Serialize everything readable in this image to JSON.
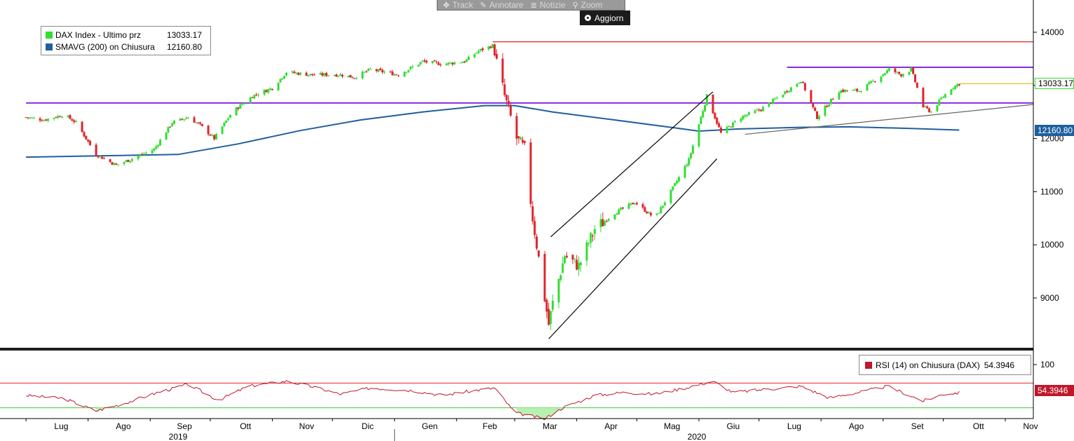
{
  "toolbar": {
    "items": [
      {
        "icon": "crosshair-icon",
        "glyph": "✥",
        "label": "Track"
      },
      {
        "icon": "pencil-icon",
        "glyph": "✎",
        "label": "Annotare"
      },
      {
        "icon": "news-icon",
        "glyph": "≣",
        "label": "Notizie"
      },
      {
        "icon": "zoom-icon",
        "glyph": "⚲",
        "label": "Zoom"
      }
    ],
    "refresh_label": "Aggiorn"
  },
  "legend": {
    "series": [
      {
        "label": "DAX Index - Ultimo prz",
        "value": "13033.17",
        "color": "#33dd33"
      },
      {
        "label": "SMAVG (200)  on Chiusura",
        "value": "12160.80",
        "color": "#1f5f9e"
      }
    ]
  },
  "rsi_legend": {
    "label": "RSI (14)  on Chiusura (DAX)",
    "value": "54.3946",
    "color": "#c0172a"
  },
  "tags": {
    "price": "13033.17",
    "sma": "12160.80",
    "rsi": "54.3946"
  },
  "colors": {
    "up": "#33dd33",
    "down": "#e0242b",
    "sma": "#1f5f9e",
    "purple": "#8a2be2",
    "red_line": "#e0242b",
    "yellow": "#e8b400",
    "rsi": "#c0172a",
    "rsi_green": "#33cc33"
  },
  "chart_data": [
    {
      "type": "candlestick",
      "title": "",
      "y_axis_ticks": [
        "9000",
        "10000",
        "11000",
        "12000",
        "13000",
        "14000"
      ],
      "ylim": [
        8200,
        14600
      ],
      "x_axis_months": [
        "Lug",
        "Ago",
        "Sep",
        "Ott",
        "Nov",
        "Dic",
        "Gen",
        "Feb",
        "Mar",
        "Apr",
        "Mag",
        "Giu",
        "Lug",
        "Ago",
        "Set",
        "Ott",
        "Nov"
      ],
      "x_axis_years": [
        "2019",
        "2020"
      ],
      "price_series_name": "DAX Index - Ultimo prz",
      "price_path": [
        [
          "2019-07-01",
          12400
        ],
        [
          "2019-07-10",
          12350
        ],
        [
          "2019-07-20",
          12450
        ],
        [
          "2019-07-26",
          12300
        ],
        [
          "2019-08-05",
          11700
        ],
        [
          "2019-08-15",
          11500
        ],
        [
          "2019-08-25",
          11650
        ],
        [
          "2019-09-03",
          11800
        ],
        [
          "2019-09-12",
          12300
        ],
        [
          "2019-09-20",
          12400
        ],
        [
          "2019-09-26",
          12250
        ],
        [
          "2019-10-03",
          12000
        ],
        [
          "2019-10-12",
          12500
        ],
        [
          "2019-10-22",
          12800
        ],
        [
          "2019-11-01",
          12950
        ],
        [
          "2019-11-08",
          13250
        ],
        [
          "2019-11-20",
          13200
        ],
        [
          "2019-12-05",
          13200
        ],
        [
          "2019-12-12",
          13150
        ],
        [
          "2019-12-20",
          13300
        ],
        [
          "2020-01-03",
          13200
        ],
        [
          "2020-01-15",
          13450
        ],
        [
          "2020-01-25",
          13400
        ],
        [
          "2020-02-05",
          13450
        ],
        [
          "2020-02-12",
          13650
        ],
        [
          "2020-02-19",
          13750
        ],
        [
          "2020-02-25",
          12800
        ],
        [
          "2020-03-02",
          12000
        ],
        [
          "2020-03-06",
          11800
        ],
        [
          "2020-03-10",
          10500
        ],
        [
          "2020-03-16",
          9000
        ],
        [
          "2020-03-18",
          8500
        ],
        [
          "2020-03-20",
          8900
        ],
        [
          "2020-03-26",
          9800
        ],
        [
          "2020-04-02",
          9600
        ],
        [
          "2020-04-10",
          10300
        ],
        [
          "2020-04-20",
          10600
        ],
        [
          "2020-04-30",
          10800
        ],
        [
          "2020-05-10",
          10500
        ],
        [
          "2020-05-18",
          11000
        ],
        [
          "2020-05-27",
          11600
        ],
        [
          "2020-06-05",
          12800
        ],
        [
          "2020-06-12",
          12100
        ],
        [
          "2020-06-22",
          12400
        ],
        [
          "2020-07-02",
          12550
        ],
        [
          "2020-07-15",
          12900
        ],
        [
          "2020-07-22",
          13100
        ],
        [
          "2020-07-30",
          12400
        ],
        [
          "2020-08-10",
          12900
        ],
        [
          "2020-08-20",
          12900
        ],
        [
          "2020-08-28",
          13100
        ],
        [
          "2020-09-04",
          13300
        ],
        [
          "2020-09-10",
          13200
        ],
        [
          "2020-09-15",
          13300
        ],
        [
          "2020-09-21",
          12600
        ],
        [
          "2020-09-25",
          12500
        ],
        [
          "2020-09-30",
          12750
        ],
        [
          "2020-10-05",
          12950
        ],
        [
          "2020-10-09",
          13033
        ]
      ],
      "sma_series_name": "SMAVG (200)  on Chiusura",
      "sma_path": [
        [
          "2019-07-01",
          11650
        ],
        [
          "2019-08-15",
          11680
        ],
        [
          "2019-09-15",
          11700
        ],
        [
          "2019-10-15",
          11900
        ],
        [
          "2019-11-15",
          12150
        ],
        [
          "2019-12-15",
          12350
        ],
        [
          "2020-01-15",
          12500
        ],
        [
          "2020-02-15",
          12620
        ],
        [
          "2020-03-01",
          12620
        ],
        [
          "2020-03-20",
          12500
        ],
        [
          "2020-04-20",
          12350
        ],
        [
          "2020-05-20",
          12200
        ],
        [
          "2020-06-01",
          12140
        ],
        [
          "2020-06-20",
          12180
        ],
        [
          "2020-07-20",
          12210
        ],
        [
          "2020-08-15",
          12220
        ],
        [
          "2020-09-15",
          12190
        ],
        [
          "2020-10-09",
          12160
        ]
      ],
      "levels": [
        {
          "name": "resistance-red",
          "y": 13820,
          "from": "2020-02-19",
          "to": "2020-12-31",
          "color": "red_line"
        },
        {
          "name": "support-purple",
          "y": 12670,
          "from": "2019-07-01",
          "to": "2020-12-31",
          "color": "purple"
        },
        {
          "name": "resistance-purple",
          "y": 13340,
          "from": "2020-07-15",
          "to": "2020-12-31",
          "color": "purple"
        },
        {
          "name": "last-price-yellow",
          "y": 13033,
          "from": "2020-10-09",
          "to": "2020-12-31",
          "color": "yellow"
        }
      ],
      "trendlines": [
        {
          "name": "channel-upper",
          "from": [
            "2020-03-19",
            10150
          ],
          "to": [
            "2020-06-08",
            12880
          ]
        },
        {
          "name": "channel-lower",
          "from": [
            "2020-03-18",
            8230
          ],
          "to": [
            "2020-06-10",
            11620
          ]
        },
        {
          "name": "rising-support",
          "from": [
            "2020-06-24",
            12080
          ],
          "to": [
            "2020-12-31",
            12820
          ]
        }
      ]
    },
    {
      "type": "line",
      "series_name": "RSI (14)  on Chiusura (DAX)",
      "y_axis_ticks": [
        "100"
      ],
      "ylim": [
        0,
        100
      ],
      "upper_band": 70,
      "lower_band": 30,
      "rsi_path": [
        [
          "2019-07-01",
          50
        ],
        [
          "2019-07-20",
          45
        ],
        [
          "2019-08-05",
          25
        ],
        [
          "2019-08-20",
          38
        ],
        [
          "2019-09-05",
          55
        ],
        [
          "2019-09-20",
          68
        ],
        [
          "2019-10-05",
          42
        ],
        [
          "2019-10-20",
          65
        ],
        [
          "2019-11-08",
          73
        ],
        [
          "2019-11-20",
          65
        ],
        [
          "2019-12-05",
          52
        ],
        [
          "2019-12-20",
          62
        ],
        [
          "2020-01-10",
          58
        ],
        [
          "2020-01-25",
          50
        ],
        [
          "2020-02-10",
          58
        ],
        [
          "2020-02-20",
          62
        ],
        [
          "2020-03-01",
          22
        ],
        [
          "2020-03-16",
          12
        ],
        [
          "2020-03-25",
          30
        ],
        [
          "2020-04-10",
          50
        ],
        [
          "2020-04-25",
          55
        ],
        [
          "2020-05-10",
          52
        ],
        [
          "2020-05-25",
          62
        ],
        [
          "2020-06-08",
          73
        ],
        [
          "2020-06-18",
          55
        ],
        [
          "2020-07-05",
          60
        ],
        [
          "2020-07-22",
          65
        ],
        [
          "2020-08-05",
          46
        ],
        [
          "2020-08-20",
          55
        ],
        [
          "2020-09-03",
          65
        ],
        [
          "2020-09-21",
          41
        ],
        [
          "2020-10-01",
          52
        ],
        [
          "2020-10-09",
          54.3946
        ]
      ]
    }
  ]
}
